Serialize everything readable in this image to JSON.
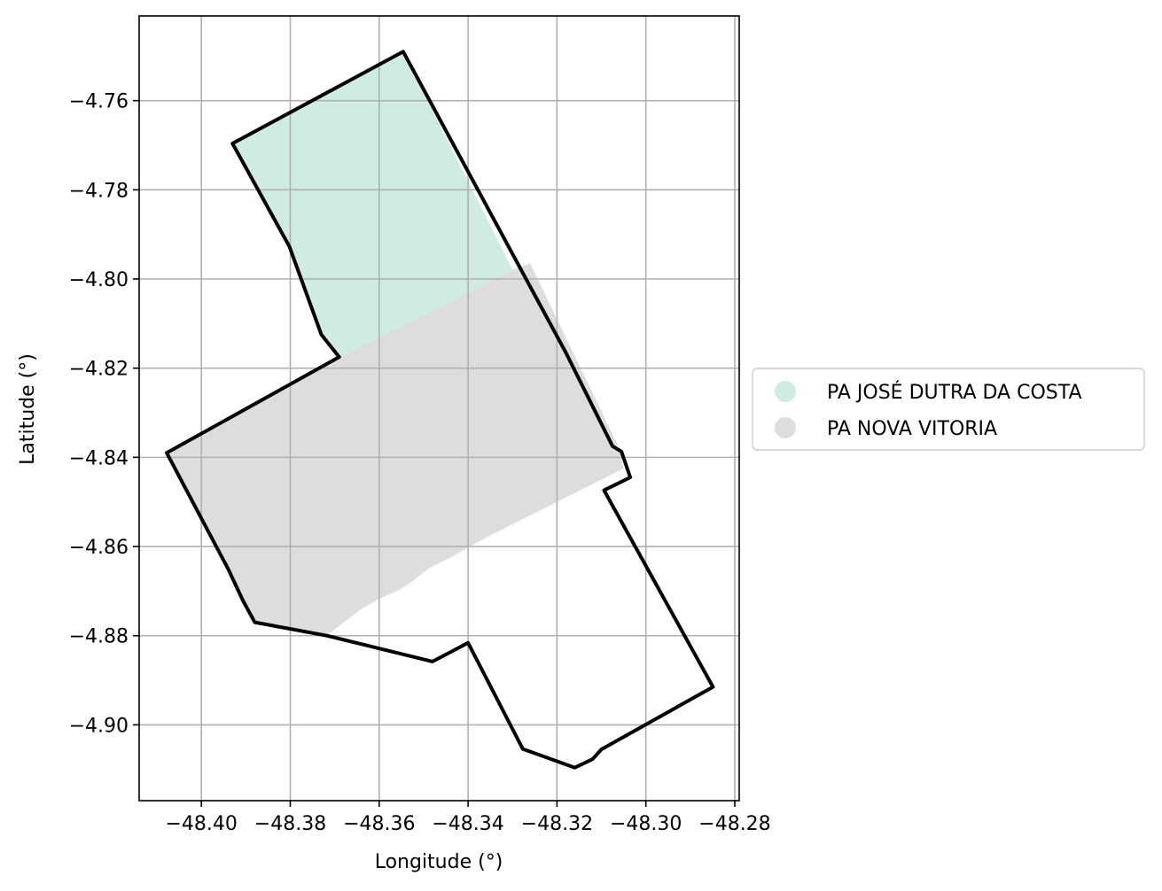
{
  "chart_data": {
    "type": "map",
    "xlabel": "Longitude (°)",
    "ylabel": "Latitude (°)",
    "xlim": [
      -48.414,
      -48.279
    ],
    "ylim": [
      -4.917,
      -4.741
    ],
    "x_ticks": [
      -48.4,
      -48.38,
      -48.36,
      -48.34,
      -48.32,
      -48.3,
      -48.28
    ],
    "x_tick_labels": [
      "−48.40",
      "−48.38",
      "−48.36",
      "−48.34",
      "−48.32",
      "−48.30",
      "−48.28"
    ],
    "y_ticks": [
      -4.76,
      -4.78,
      -4.8,
      -4.82,
      -4.84,
      -4.86,
      -4.88,
      -4.9
    ],
    "y_tick_labels": [
      "−4.76",
      "−4.78",
      "−4.80",
      "−4.82",
      "−4.84",
      "−4.86",
      "−4.88",
      "−4.90"
    ],
    "grid": true,
    "legend_position": "center-right, outside",
    "regions": [
      {
        "name": "PA JOSÉ DUTRA DA COSTA",
        "color": "#d0ebe0",
        "polygon": [
          [
            -48.3546,
            -4.749
          ],
          [
            -48.393,
            -4.7696
          ],
          [
            -48.3802,
            -4.7927
          ],
          [
            -48.373,
            -4.8125
          ],
          [
            -48.369,
            -4.8175
          ],
          [
            -48.33,
            -4.798
          ]
        ]
      },
      {
        "name": "PA NOVA VITORIA",
        "color": "#dddddd",
        "polygon": [
          [
            -48.369,
            -4.8175
          ],
          [
            -48.4078,
            -4.839
          ],
          [
            -48.394,
            -4.865
          ],
          [
            -48.3906,
            -4.8722
          ],
          [
            -48.388,
            -4.877
          ],
          [
            -48.3718,
            -4.88
          ],
          [
            -48.364,
            -4.874
          ],
          [
            -48.36,
            -4.8717
          ],
          [
            -48.356,
            -4.87
          ],
          [
            -48.353,
            -4.8682
          ],
          [
            -48.349,
            -4.865
          ],
          [
            -48.344,
            -4.8625
          ],
          [
            -48.336,
            -4.858
          ],
          [
            -48.32,
            -4.85
          ],
          [
            -48.312,
            -4.846
          ],
          [
            -48.305,
            -4.8425
          ],
          [
            -48.306,
            -4.838
          ],
          [
            -48.312,
            -4.8255
          ],
          [
            -48.32,
            -4.809
          ],
          [
            -48.326,
            -4.7965
          ],
          [
            -48.33,
            -4.798
          ]
        ]
      }
    ],
    "boundary": [
      [
        -48.3546,
        -4.749
      ],
      [
        -48.393,
        -4.7696
      ],
      [
        -48.3802,
        -4.7927
      ],
      [
        -48.373,
        -4.8125
      ],
      [
        -48.369,
        -4.8175
      ],
      [
        -48.4078,
        -4.839
      ],
      [
        -48.394,
        -4.865
      ],
      [
        -48.3906,
        -4.8722
      ],
      [
        -48.388,
        -4.877
      ],
      [
        -48.3718,
        -4.88
      ],
      [
        -48.348,
        -4.8858
      ],
      [
        -48.34,
        -4.8816
      ],
      [
        -48.3277,
        -4.9054
      ],
      [
        -48.316,
        -4.9096
      ],
      [
        -48.312,
        -4.9077
      ],
      [
        -48.31,
        -4.9055
      ],
      [
        -48.2849,
        -4.8915
      ],
      [
        -48.3094,
        -4.8474
      ],
      [
        -48.3035,
        -4.8445
      ],
      [
        -48.3055,
        -4.8387
      ],
      [
        -48.3075,
        -4.8375
      ],
      [
        -48.318,
        -4.8165
      ],
      [
        -48.3546,
        -4.749
      ]
    ]
  },
  "legend": {
    "items": [
      {
        "label": "PA JOSÉ DUTRA DA COSTA",
        "color": "#d0ebe0"
      },
      {
        "label": "PA NOVA VITORIA",
        "color": "#dddddd"
      }
    ]
  }
}
